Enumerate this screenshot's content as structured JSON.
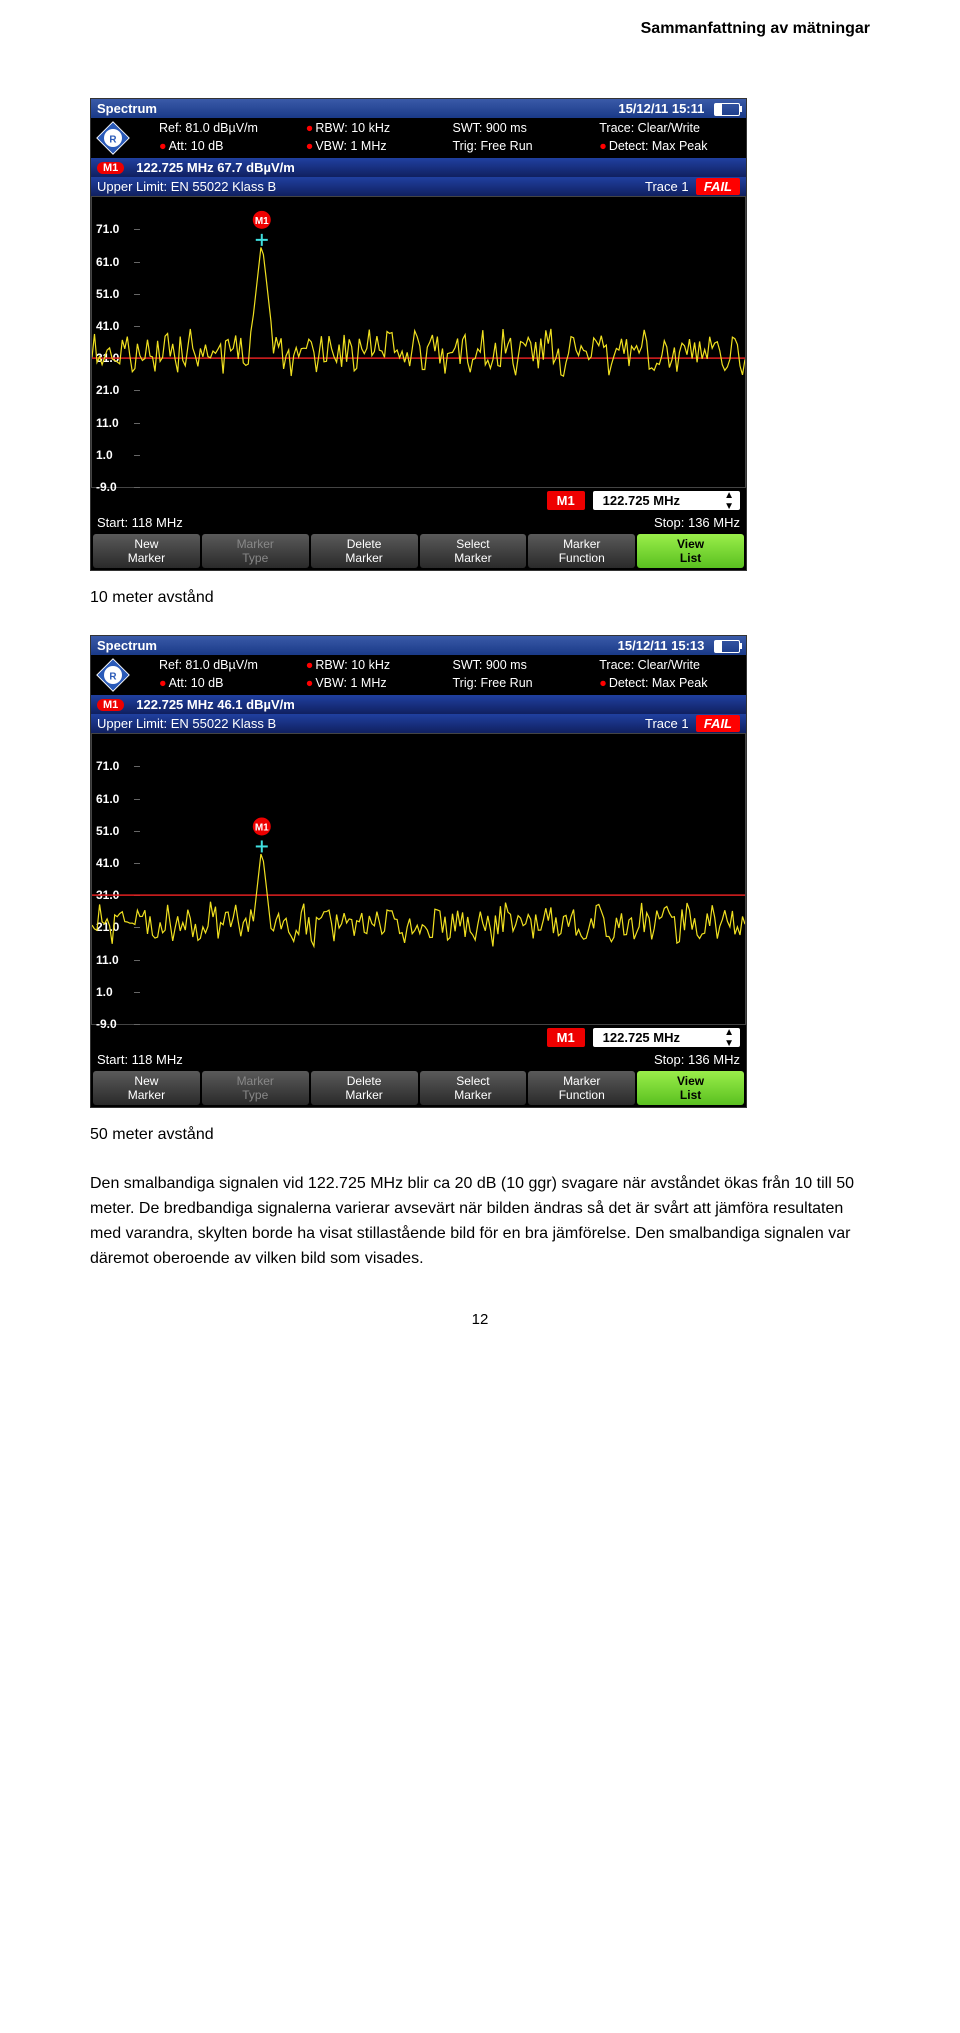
{
  "header": "Sammanfattning av mätningar",
  "caption1": "10 meter avstånd",
  "caption2": "50 meter avstånd",
  "bodytext": "Den smalbandiga signalen vid 122.725 MHz blir ca 20 dB (10 ggr) svagare när avståndet ökas från 10 till 50 meter. De bredbandiga signalerna varierar avsevärt när bilden ändras så det är svårt att jämföra resultaten med varandra, skylten borde ha visat stillastående bild för en bra jämförelse. Den smalbandiga signalen var däremot oberoende av vilken bild som visades.",
  "pagenum": "12",
  "analyzer1": {
    "title": "Spectrum",
    "datetime": "15/12/11   15:11",
    "params": {
      "ref": "Ref: 81.0 dBµV/m",
      "rbw": "RBW:  10 kHz",
      "swt": "SWT:  900 ms",
      "trace": "Trace:    Clear/Write",
      "att": "Att: 10 dB",
      "vbw": "VBW:  1 MHz",
      "trig": "Trig:  Free Run",
      "detect": "Detect:  Max Peak"
    },
    "marker": "122.725  MHz  67.7  dBµV/m",
    "limit_lbl": "Upper Limit:     EN 55022 Klass B",
    "trace_lbl": "Trace 1",
    "fail": "FAIL",
    "yticks": [
      "71.0",
      "61.0",
      "51.0",
      "41.0",
      "31.0",
      "21.0",
      "11.0",
      "1.0",
      "-9.0"
    ],
    "marker_field_lbl": "M1",
    "marker_field_val": "122.725 MHz",
    "start": "Start:  118 MHz",
    "stop": "Stop: 136 MHz",
    "softkeys": [
      {
        "l1": "New",
        "l2": "Marker",
        "cls": ""
      },
      {
        "l1": "Marker",
        "l2": "Type",
        "cls": "disabled"
      },
      {
        "l1": "Delete",
        "l2": "Marker",
        "cls": ""
      },
      {
        "l1": "Select",
        "l2": "Marker",
        "cls": ""
      },
      {
        "l1": "Marker",
        "l2": "Function",
        "cls": ""
      },
      {
        "l1": "View",
        "l2": "List",
        "cls": "active"
      }
    ],
    "trace_data": {
      "peak_x": 0.26,
      "peak_y": 67.7,
      "noise_mean": 33,
      "noise_amp": 6,
      "limit_y": 31,
      "colors": {
        "trace": "#f0e020",
        "limit": "#e02020",
        "marker": "#40e0e0"
      }
    }
  },
  "analyzer2": {
    "title": "Spectrum",
    "datetime": "15/12/11   15:13",
    "params": {
      "ref": "Ref: 81.0 dBµV/m",
      "rbw": "RBW:  10 kHz",
      "swt": "SWT:  900 ms",
      "trace": "Trace:    Clear/Write",
      "att": "Att: 10 dB",
      "vbw": "VBW:  1 MHz",
      "trig": "Trig:  Free Run",
      "detect": "Detect:  Max Peak"
    },
    "marker": "122.725  MHz  46.1  dBµV/m",
    "limit_lbl": "Upper Limit:     EN 55022 Klass B",
    "trace_lbl": "Trace 1",
    "fail": "FAIL",
    "yticks": [
      "71.0",
      "61.0",
      "51.0",
      "41.0",
      "31.0",
      "21.0",
      "11.0",
      "1.0",
      "-9.0"
    ],
    "marker_field_lbl": "M1",
    "marker_field_val": "122.725 MHz",
    "start": "Start:  118 MHz",
    "stop": "Stop: 136 MHz",
    "softkeys": [
      {
        "l1": "New",
        "l2": "Marker",
        "cls": ""
      },
      {
        "l1": "Marker",
        "l2": "Type",
        "cls": "disabled"
      },
      {
        "l1": "Delete",
        "l2": "Marker",
        "cls": ""
      },
      {
        "l1": "Select",
        "l2": "Marker",
        "cls": ""
      },
      {
        "l1": "Marker",
        "l2": "Function",
        "cls": ""
      },
      {
        "l1": "View",
        "l2": "List",
        "cls": "active"
      }
    ],
    "trace_data": {
      "peak_x": 0.26,
      "peak_y": 46.1,
      "noise_mean": 22,
      "noise_amp": 5,
      "limit_y": 31,
      "colors": {
        "trace": "#f0e020",
        "limit": "#e02020",
        "marker": "#40e0e0"
      }
    }
  }
}
